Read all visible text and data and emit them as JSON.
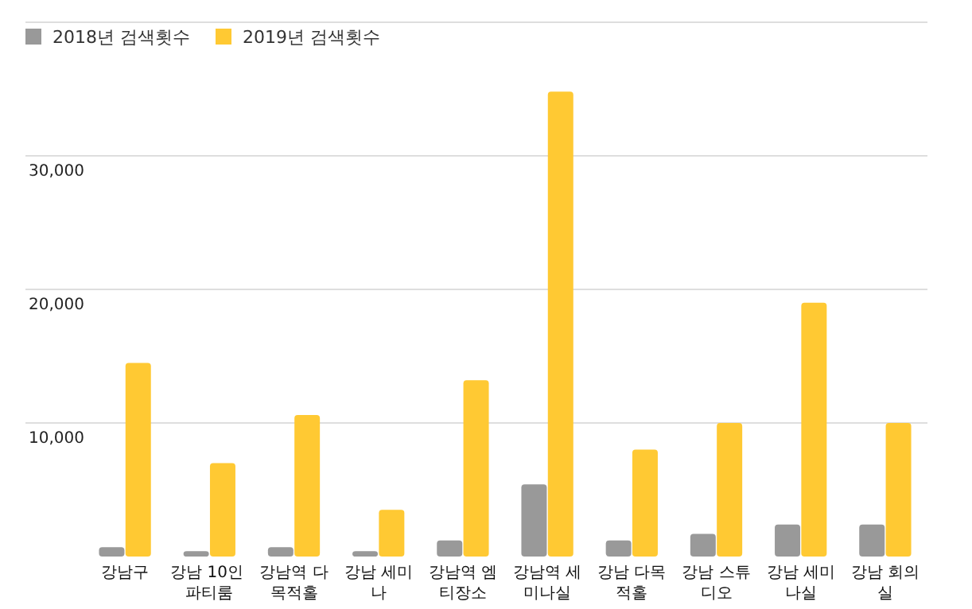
{
  "chart_data": {
    "type": "bar",
    "categories": [
      "강남구",
      "강남 10인 파티룸",
      "강남역 다목적홀",
      "강남 세미나",
      "강남역 엠티장소",
      "강남역 세미나실",
      "강남 다목적홀",
      "강남 스튜디오",
      "강남 세미나실",
      "강남 회의실"
    ],
    "series": [
      {
        "name": "2018년 검색횟수",
        "color": "#999999",
        "values": [
          700,
          400,
          700,
          400,
          1200,
          5400,
          1200,
          1700,
          2400,
          2400
        ]
      },
      {
        "name": "2019년 검색횟수",
        "color": "#ffc933",
        "values": [
          14500,
          7000,
          10600,
          3500,
          13200,
          34800,
          8000,
          10000,
          19000,
          10000
        ]
      }
    ],
    "ylim": [
      0,
      40000
    ],
    "yticks": [
      {
        "value": 10000,
        "label": "10,000"
      },
      {
        "value": 20000,
        "label": "20,000"
      },
      {
        "value": 30000,
        "label": "30,000"
      },
      {
        "value": 40000,
        "label": null
      }
    ],
    "grid": "y",
    "legend": "top left"
  }
}
